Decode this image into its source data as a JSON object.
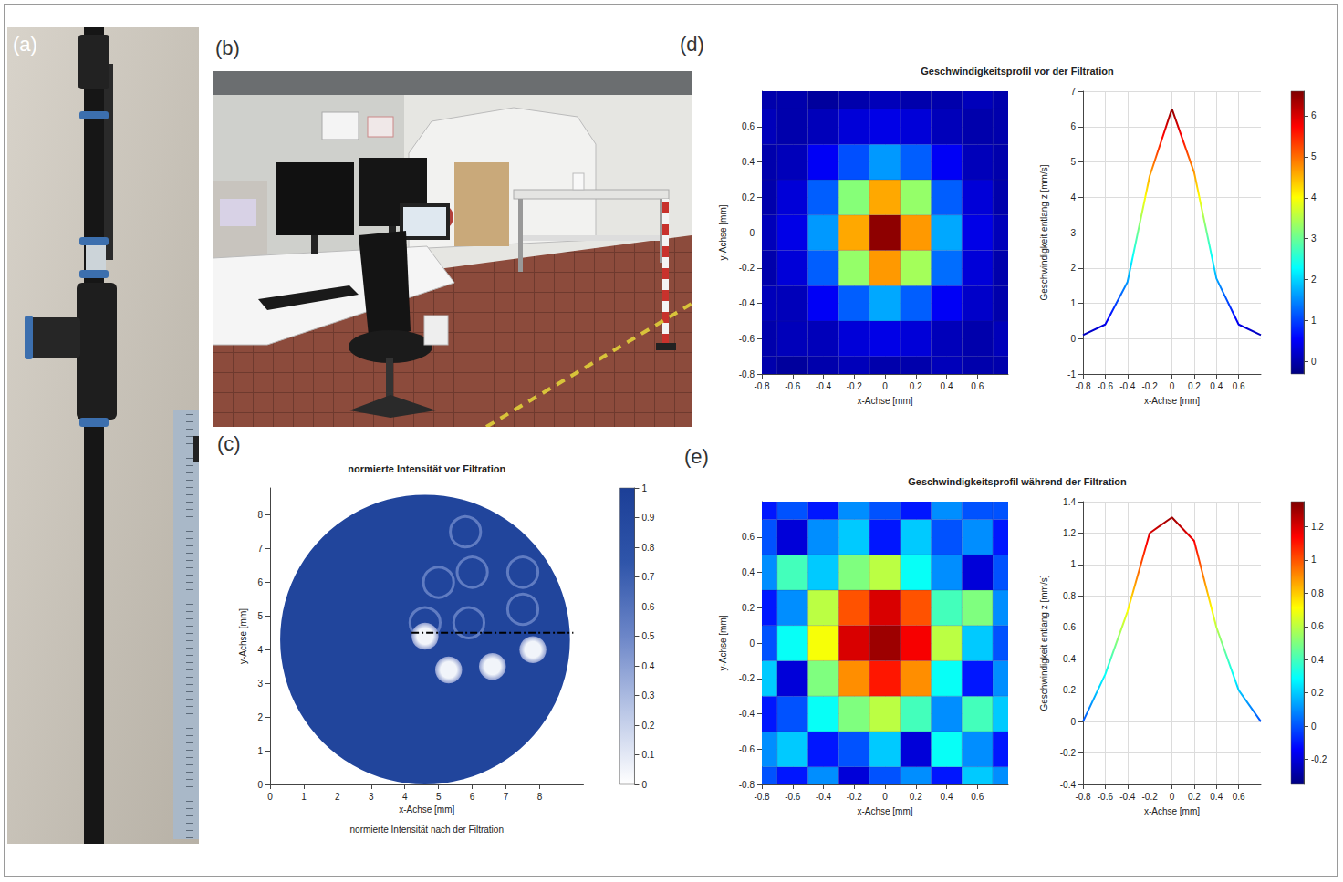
{
  "photos": [
    {
      "label": "(a)"
    },
    {
      "label": "(b)"
    }
  ],
  "chart_data": [
    {
      "panel": "(c)",
      "type": "intensity_map",
      "title": "normierte Intensität vor Filtration",
      "subtitle": "normierte Intensität nach der Filtration",
      "x_label": "x-Achse [mm]",
      "y_label": "y-Achse [mm]",
      "xlim": [
        0,
        9.3
      ],
      "xticks": [
        0,
        1,
        2,
        3,
        4,
        5,
        6,
        7,
        8
      ],
      "ylim": [
        0,
        8.8
      ],
      "yticks": [
        0,
        1,
        2,
        3,
        4,
        5,
        6,
        7,
        8
      ],
      "grid": false,
      "disc": {
        "center": [
          4.6,
          4.3
        ],
        "radius": 4.3,
        "value": 0.93
      },
      "rings": {
        "radius": 0.45,
        "value": 0.55,
        "centers": [
          [
            5.8,
            7.5
          ],
          [
            5.0,
            6.0
          ],
          [
            6.0,
            6.3
          ],
          [
            7.5,
            6.3
          ],
          [
            7.5,
            5.2
          ],
          [
            4.6,
            4.8
          ],
          [
            5.9,
            4.8
          ]
        ]
      },
      "spots": {
        "radius": 0.4,
        "value": 0.05,
        "centers": [
          [
            4.6,
            4.4
          ],
          [
            5.3,
            3.4
          ],
          [
            6.6,
            3.5
          ],
          [
            7.8,
            4.0
          ]
        ]
      },
      "line": {
        "x": [
          4.2,
          9.0
        ],
        "y": [
          4.5,
          4.5
        ],
        "color": "#000000",
        "line_style": "dashdot"
      },
      "colorbar": {
        "range": [
          0,
          1
        ],
        "ticks": [
          0,
          0.1,
          0.2,
          0.3,
          0.4,
          0.5,
          0.6,
          0.7,
          0.8,
          0.9,
          1
        ]
      }
    },
    {
      "panel": "(d)",
      "type": "surface",
      "title": "Geschwindigkeitsprofil vor der Filtration",
      "x_label": "x-Achse [mm]",
      "y_label": "y-Achse [mm]",
      "z_label": "Geschwindigkeit entlang z [mm/s]",
      "x": [
        -0.8,
        -0.6,
        -0.4,
        -0.2,
        0,
        0.2,
        0.4,
        0.6,
        0.8
      ],
      "y": [
        -0.8,
        -0.6,
        -0.4,
        -0.2,
        0,
        0.2,
        0.4,
        0.6,
        0.8
      ],
      "values": [
        [
          0.0,
          -0.1,
          0.0,
          0.1,
          0.0,
          0.0,
          0.1,
          0.0,
          0.0
        ],
        [
          0.0,
          0.1,
          0.1,
          0.3,
          0.4,
          0.3,
          0.1,
          0.0,
          0.1
        ],
        [
          0.1,
          0.1,
          0.5,
          1.2,
          1.7,
          1.2,
          0.5,
          0.2,
          0.0
        ],
        [
          0.0,
          0.3,
          1.2,
          3.3,
          4.7,
          3.4,
          1.3,
          0.3,
          0.0
        ],
        [
          0.1,
          0.4,
          1.6,
          4.6,
          6.5,
          4.7,
          1.7,
          0.4,
          0.1
        ],
        [
          0.0,
          0.3,
          1.2,
          3.2,
          4.6,
          3.3,
          1.2,
          0.3,
          0.0
        ],
        [
          0.0,
          0.1,
          0.5,
          1.1,
          1.6,
          1.2,
          0.5,
          0.1,
          0.0
        ],
        [
          0.1,
          0.0,
          0.1,
          0.3,
          0.4,
          0.3,
          0.1,
          0.0,
          0.0
        ],
        [
          0.0,
          0.0,
          -0.1,
          0.0,
          0.1,
          0.0,
          0.0,
          0.1,
          0.0
        ]
      ],
      "xlim": [
        -0.8,
        0.8
      ],
      "xticks": [
        -0.8,
        -0.6,
        -0.4,
        -0.2,
        0,
        0.2,
        0.4,
        0.6
      ],
      "ylim": [
        -0.8,
        0.8
      ],
      "yticks": [
        -0.8,
        -0.6,
        -0.4,
        -0.2,
        0,
        0.2,
        0.4,
        0.6
      ],
      "zlim": [
        -1,
        7
      ],
      "zticks": [
        -1,
        0,
        1,
        2,
        3,
        4,
        5,
        6,
        7
      ],
      "colorbar": {
        "range": [
          -0.3,
          6.6
        ],
        "ticks": [
          0,
          1,
          2,
          3,
          4,
          5,
          6
        ]
      },
      "grid": true
    },
    {
      "panel": "(e)",
      "type": "surface",
      "title": "Geschwindigkeitsprofil während der Filtration",
      "x_label": "x-Achse [mm]",
      "y_label": "y-Achse [mm]",
      "z_label": "Geschwindigkeit entlang z [mm/s]",
      "x": [
        -0.8,
        -0.6,
        -0.4,
        -0.2,
        0,
        0.2,
        0.4,
        0.6,
        0.8
      ],
      "y": [
        -0.8,
        -0.6,
        -0.4,
        -0.2,
        0,
        0.2,
        0.4,
        0.6,
        0.8
      ],
      "values": [
        [
          0.0,
          -0.1,
          0.1,
          -0.2,
          0.0,
          0.1,
          -0.1,
          0.2,
          0.1
        ],
        [
          0.1,
          0.2,
          -0.1,
          0.0,
          0.2,
          -0.2,
          0.3,
          0.1,
          -0.1
        ],
        [
          -0.1,
          0.0,
          0.3,
          0.5,
          0.6,
          0.4,
          0.1,
          0.4,
          0.2
        ],
        [
          0.2,
          -0.2,
          0.5,
          0.9,
          1.1,
          0.9,
          0.3,
          -0.1,
          0.1
        ],
        [
          0.0,
          0.3,
          0.7,
          1.2,
          1.3,
          1.15,
          0.6,
          0.2,
          0.0
        ],
        [
          -0.1,
          0.1,
          0.6,
          1.0,
          1.2,
          1.0,
          0.4,
          0.5,
          0.1
        ],
        [
          0.1,
          0.4,
          0.2,
          0.5,
          0.6,
          0.3,
          0.1,
          -0.2,
          0.0
        ],
        [
          0.0,
          -0.2,
          0.1,
          0.2,
          -0.1,
          0.2,
          0.0,
          0.1,
          -0.1
        ],
        [
          -0.1,
          0.0,
          -0.1,
          0.1,
          0.0,
          -0.1,
          0.1,
          0.0,
          0.0
        ]
      ],
      "xlim": [
        -0.8,
        0.8
      ],
      "xticks": [
        -0.8,
        -0.6,
        -0.4,
        -0.2,
        0,
        0.2,
        0.4,
        0.6
      ],
      "ylim": [
        -0.8,
        0.8
      ],
      "yticks": [
        -0.8,
        -0.6,
        -0.4,
        -0.2,
        0,
        0.2,
        0.4,
        0.6
      ],
      "zlim": [
        -0.4,
        1.4
      ],
      "zticks": [
        -0.4,
        -0.2,
        0,
        0.2,
        0.4,
        0.6,
        0.8,
        1,
        1.2,
        1.4
      ],
      "colorbar": {
        "range": [
          -0.35,
          1.35
        ],
        "ticks": [
          -0.2,
          0,
          0.2,
          0.4,
          0.6,
          0.8,
          1,
          1.2
        ]
      },
      "grid": true
    }
  ]
}
